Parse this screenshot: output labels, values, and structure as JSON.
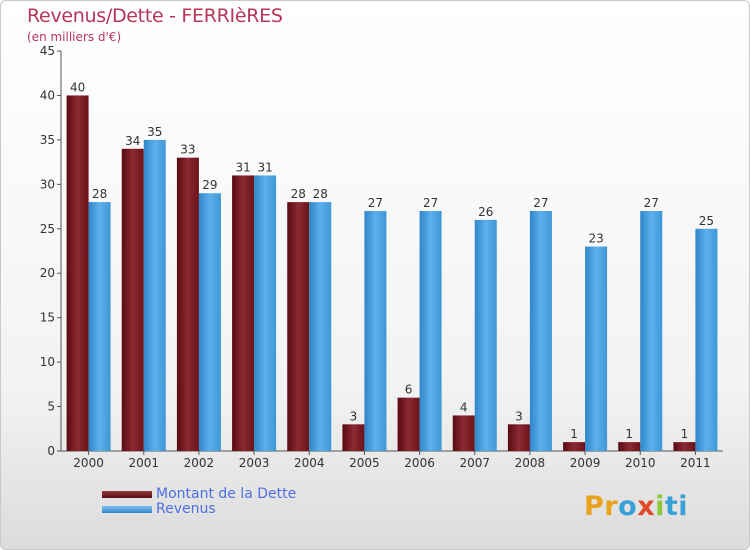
{
  "title": "Revenus/Dette - FERRIèRES",
  "subtitle": "(en milliers d'€)",
  "logo": {
    "text": "Proxiti",
    "letters": [
      "P",
      "r",
      "o",
      "x",
      "i",
      "t",
      "i"
    ],
    "colors": [
      "#e8a21c",
      "#e8a21c",
      "#3aa0d8",
      "#e04a2a",
      "#8cc83c",
      "#3aa0d8",
      "#3aa0d8"
    ]
  },
  "chart_data": {
    "type": "bar",
    "categories": [
      "2000",
      "2001",
      "2002",
      "2003",
      "2004",
      "2005",
      "2006",
      "2007",
      "2008",
      "2009",
      "2010",
      "2011"
    ],
    "series": [
      {
        "name": "Montant de la Dette",
        "color": "#7a1a22",
        "values": [
          40,
          34,
          33,
          31,
          28,
          3,
          6,
          4,
          3,
          1,
          1,
          1
        ]
      },
      {
        "name": "Revenus",
        "color": "#4ba3e3",
        "values": [
          28,
          35,
          29,
          31,
          28,
          27,
          27,
          26,
          27,
          23,
          27,
          25
        ]
      }
    ],
    "yticks": [
      "0",
      "5",
      "10",
      "15",
      "20",
      "25",
      "30",
      "35",
      "40",
      "45"
    ],
    "ylim": [
      0,
      45
    ],
    "grid": false,
    "legend": "bottom-left"
  }
}
